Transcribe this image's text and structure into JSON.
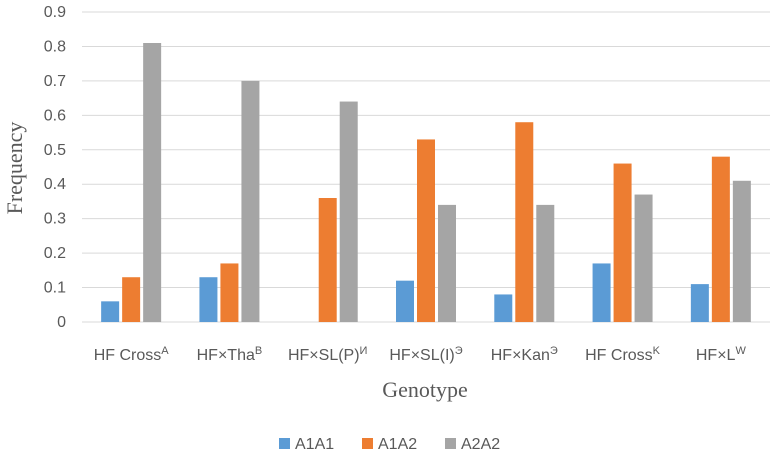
{
  "chart_data": {
    "type": "bar",
    "title": "",
    "xlabel": "Genotype",
    "ylabel": "Frequency",
    "ylim": [
      0,
      0.9
    ],
    "yticks": [
      "0",
      "0.1",
      "0.2",
      "0.3",
      "0.4",
      "0.5",
      "0.6",
      "0.7",
      "0.8",
      "0.9"
    ],
    "grid": true,
    "legend_position": "bottom",
    "categories": [
      {
        "base": "HF Cross",
        "sup": "A"
      },
      {
        "base": "HF×Tha",
        "sup": "B"
      },
      {
        "base": "HF×SL(P)",
        "sup": "И"
      },
      {
        "base": "HF×SL(I)",
        "sup": "Э"
      },
      {
        "base": "HF×Kan",
        "sup": "Э"
      },
      {
        "base": "HF Cross",
        "sup": "K"
      },
      {
        "base": "HF×L",
        "sup": "W"
      }
    ],
    "series": [
      {
        "name": "A1A1",
        "color": "#5b9bd5",
        "values": [
          0.06,
          0.13,
          0.0,
          0.12,
          0.08,
          0.17,
          0.11
        ]
      },
      {
        "name": "A1A2",
        "color": "#ed7d31",
        "values": [
          0.13,
          0.17,
          0.36,
          0.53,
          0.58,
          0.46,
          0.48
        ]
      },
      {
        "name": "A2A2",
        "color": "#a5a5a5",
        "values": [
          0.81,
          0.7,
          0.64,
          0.34,
          0.34,
          0.37,
          0.41
        ]
      }
    ]
  }
}
